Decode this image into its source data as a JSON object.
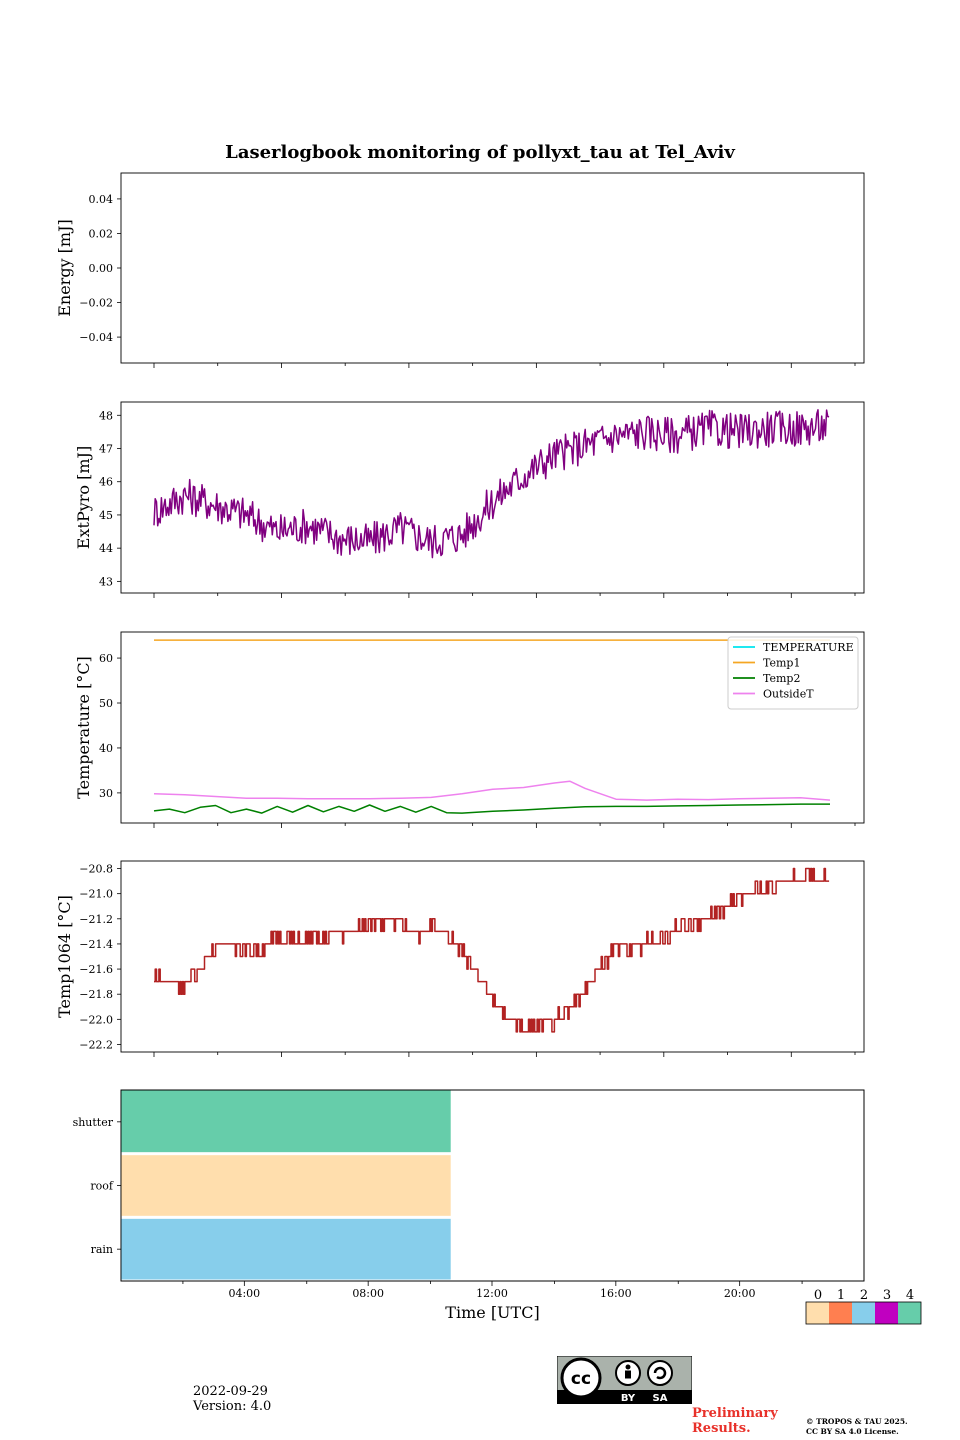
{
  "figure": {
    "title": "Laserlogbook monitoring of pollyxt_tau at Tel_Aviv",
    "date": "2022-09-29",
    "version": "Version: 4.0",
    "preliminary": "Preliminary Results.",
    "copyright_line1": "© TROPOS & TAU 2025.",
    "copyright_line2": "CC BY SA 4.0 License.",
    "license_badge": {
      "by": "BY",
      "sa": "SA"
    }
  },
  "chart_data": [
    {
      "id": "energy",
      "type": "line",
      "title": "",
      "ylabel": "Energy [mJ]",
      "xlabel": "",
      "ylim": [
        -0.055,
        0.055
      ],
      "yticks": [
        -0.04,
        -0.02,
        0.0,
        0.02,
        0.04
      ],
      "ytick_labels": [
        "−0.04",
        "−0.02",
        "0.00",
        "0.02",
        "0.04"
      ],
      "series": []
    },
    {
      "id": "extpyro",
      "type": "line",
      "ylabel": "ExtPyro [mJ]",
      "ylim": [
        42.65,
        48.4
      ],
      "yticks": [
        43,
        44,
        45,
        46,
        47,
        48
      ],
      "ytick_labels": [
        "43",
        "44",
        "45",
        "46",
        "47",
        "48"
      ],
      "series": [
        {
          "color": "#800080",
          "x_hours": [
            1,
            2,
            3,
            4,
            5,
            6,
            7,
            8,
            9,
            10,
            11,
            12,
            13,
            14,
            15,
            16,
            17,
            18,
            19,
            20,
            21,
            22,
            22.95
          ],
          "y_trend": [
            45.1,
            45.6,
            45.3,
            45.0,
            44.5,
            44.7,
            44.3,
            44.2,
            44.6,
            44.2,
            44.4,
            45.4,
            46.2,
            46.8,
            47.1,
            47.4,
            47.5,
            47.4,
            47.6,
            47.5,
            47.6,
            47.6,
            47.7
          ],
          "noise_amplitude": 0.55
        }
      ]
    },
    {
      "id": "temperature",
      "type": "line",
      "ylabel": "Temperature [°C]",
      "ylim": [
        23.3,
        65.8
      ],
      "yticks": [
        30,
        40,
        50,
        60
      ],
      "ytick_labels": [
        "30",
        "40",
        "50",
        "60"
      ],
      "legend_position": "top-right",
      "series": [
        {
          "name": "TEMPERATURE",
          "color": "#00e5ee",
          "x_hours": [],
          "values": []
        },
        {
          "name": "Temp1",
          "color": "#f5a623",
          "x_hours": [
            1,
            22.95
          ],
          "values": [
            64,
            64
          ]
        },
        {
          "name": "Temp2",
          "color": "#008000",
          "x_hours": [
            1,
            1.5,
            2,
            2.5,
            3,
            3.5,
            4,
            4.5,
            5,
            5.5,
            6,
            6.5,
            7,
            7.5,
            8,
            8.5,
            9,
            9.5,
            10,
            10.5,
            11,
            12,
            13,
            14,
            15,
            16,
            17,
            18,
            19,
            20,
            21,
            22,
            22.95
          ],
          "values": [
            26.0,
            26.4,
            25.6,
            26.8,
            27.2,
            25.6,
            26.4,
            25.5,
            27.0,
            25.7,
            27.2,
            25.8,
            27.0,
            25.9,
            27.3,
            25.9,
            27.0,
            25.7,
            27.0,
            25.6,
            25.5,
            25.9,
            26.2,
            26.6,
            26.9,
            27.0,
            27.0,
            27.1,
            27.2,
            27.3,
            27.4,
            27.5,
            27.5
          ]
        },
        {
          "name": "OutsideT",
          "color": "#ee82ee",
          "x_hours": [
            1,
            2,
            3,
            4,
            5,
            6,
            7,
            8,
            9,
            10,
            11,
            12,
            13,
            14,
            14.5,
            15,
            15.5,
            16,
            17,
            18,
            19,
            20,
            21,
            22,
            22.95
          ],
          "values": [
            29.8,
            29.6,
            29.2,
            28.8,
            28.8,
            28.7,
            28.7,
            28.7,
            28.8,
            29.0,
            29.8,
            30.8,
            31.2,
            32.2,
            32.6,
            31.0,
            29.8,
            28.6,
            28.4,
            28.6,
            28.5,
            28.7,
            28.8,
            28.9,
            28.4
          ]
        }
      ]
    },
    {
      "id": "temp1064",
      "type": "line",
      "ylabel": "Temp1064 [°C]",
      "ylim": [
        -22.26,
        -20.74
      ],
      "yticks": [
        -22.2,
        -22.0,
        -21.8,
        -21.6,
        -21.4,
        -21.2,
        -21.0,
        -20.8
      ],
      "ytick_labels": [
        "−22.2",
        "−22.0",
        "−21.8",
        "−21.6",
        "−21.4",
        "−21.2",
        "−21.0",
        "−20.8"
      ],
      "series": [
        {
          "color": "#b22222",
          "x_hours": [
            1,
            1.5,
            2,
            2.5,
            3,
            3.5,
            4,
            4.5,
            5,
            5.5,
            6,
            6.5,
            7,
            7.5,
            8,
            8.5,
            9,
            9.5,
            10,
            10.5,
            11,
            11.5,
            12,
            12.5,
            13,
            13.5,
            14,
            14.5,
            15,
            15.5,
            16,
            16.5,
            17,
            17.5,
            18,
            18.5,
            19,
            19.5,
            20,
            20.5,
            21,
            21.5,
            22,
            22.5,
            22.95
          ],
          "y_trend": [
            -21.66,
            -21.7,
            -21.74,
            -21.6,
            -21.4,
            -21.4,
            -21.44,
            -21.44,
            -21.36,
            -21.36,
            -21.38,
            -21.36,
            -21.32,
            -21.3,
            -21.22,
            -21.22,
            -21.24,
            -21.32,
            -21.26,
            -21.3,
            -21.44,
            -21.66,
            -21.86,
            -22.0,
            -22.06,
            -22.04,
            -22.0,
            -21.92,
            -21.76,
            -21.58,
            -21.44,
            -21.44,
            -21.38,
            -21.36,
            -21.28,
            -21.24,
            -21.18,
            -21.12,
            -21.04,
            -20.98,
            -20.94,
            -20.9,
            -20.88,
            -20.86,
            -20.88
          ],
          "noise_amplitude": 0.05
        }
      ]
    },
    {
      "id": "status",
      "type": "heatmap",
      "xlabel": "Time [UTC]",
      "rows": [
        "shutter",
        "roof",
        "rain"
      ],
      "xticks_hours": [
        4,
        8,
        12,
        16,
        20
      ],
      "xtick_labels": [
        "04:00",
        "08:00",
        "12:00",
        "16:00",
        "20:00"
      ],
      "xlim_hours": [
        0,
        24
      ],
      "segments": [
        {
          "row": "shutter",
          "start_hour": 0,
          "end_hour": 10.65,
          "code": 4
        },
        {
          "row": "roof",
          "start_hour": 0,
          "end_hour": 10.65,
          "code": 0
        },
        {
          "row": "rain",
          "start_hour": 0,
          "end_hour": 10.65,
          "code": 2
        }
      ],
      "colorbar": {
        "labels": [
          "0",
          "1",
          "2",
          "3",
          "4"
        ],
        "colors": [
          "#ffdead",
          "#ff7f50",
          "#87ceeb",
          "#c000c0",
          "#66cdaa"
        ]
      }
    }
  ]
}
